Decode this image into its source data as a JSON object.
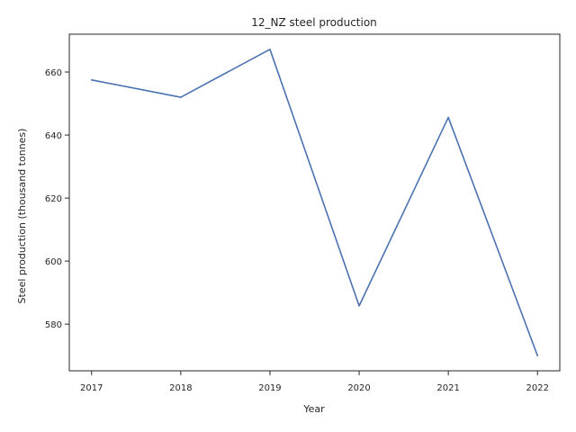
{
  "chart_data": {
    "type": "line",
    "title": "12_NZ steel production",
    "xlabel": "Year",
    "ylabel": "Steel production (thousand tonnes)",
    "x": [
      2017,
      2018,
      2019,
      2020,
      2021,
      2022
    ],
    "series": [
      {
        "values": [
          657.5,
          652.0,
          667.2,
          585.8,
          645.6,
          570.0
        ]
      }
    ],
    "xlim": [
      2016.75,
      2022.25
    ],
    "ylim": [
      565.2,
      672.0
    ],
    "xticks": [
      "2017",
      "2018",
      "2019",
      "2020",
      "2021",
      "2022"
    ],
    "yticks": [
      580,
      600,
      620,
      640,
      660
    ],
    "ytick_labels": [
      "580",
      "600",
      "620",
      "640",
      "660"
    ],
    "grid": false,
    "line_color": "#4c72b0"
  }
}
